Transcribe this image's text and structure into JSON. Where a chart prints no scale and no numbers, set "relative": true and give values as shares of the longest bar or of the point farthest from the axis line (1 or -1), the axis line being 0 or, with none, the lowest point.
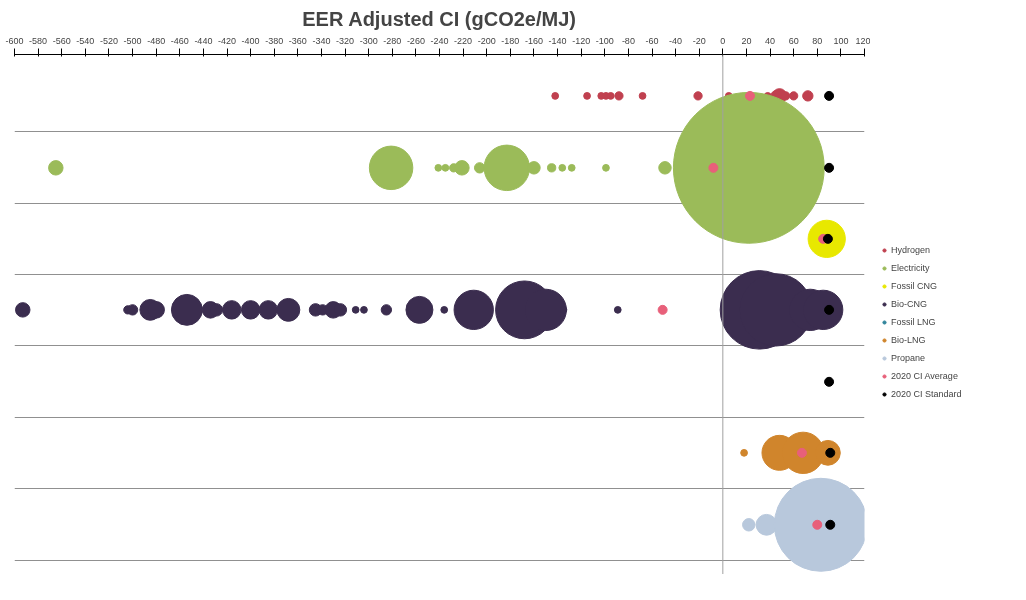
{
  "chart_data": {
    "type": "bubble",
    "title": "EER Adjusted CI (gCO2e/MJ)",
    "relative": true,
    "xlim": [
      -600,
      120
    ],
    "xticks": [
      -600,
      -580,
      -560,
      -540,
      -520,
      -500,
      -480,
      -460,
      -440,
      -420,
      -400,
      -380,
      -360,
      -340,
      -320,
      -300,
      -280,
      -260,
      -240,
      -220,
      -200,
      -180,
      -160,
      -140,
      -120,
      -100,
      -80,
      -60,
      -40,
      -20,
      0,
      20,
      40,
      60,
      80,
      100,
      120
    ],
    "tick_labels": "x",
    "grid": "y",
    "legend": "right",
    "ref_lines": [
      {
        "axis": "x",
        "value": 0,
        "color": "#a0a0a0"
      }
    ],
    "series": [
      {
        "name": "Hydrogen",
        "color": "#c0404f",
        "x": [
          -142,
          -115,
          -103,
          -99,
          -95,
          -88,
          -68,
          -21,
          5,
          38,
          45,
          48,
          53,
          60,
          72
        ],
        "values": [
          -0.088,
          -0.088,
          -0.088,
          -0.088,
          -0.088,
          -0.088,
          -0.088,
          -0.088,
          -0.088,
          -0.088,
          -0.088,
          -0.088,
          -0.088,
          -0.088,
          -0.088
        ],
        "sizes": [
          0.002,
          0.002,
          0.002,
          0.002,
          0.002,
          0.003,
          0.002,
          0.003,
          0.002,
          0.002,
          0.0047,
          0.0092,
          0.003,
          0.003,
          0.0047
        ]
      },
      {
        "name": "Electricity",
        "color": "#9bbb59",
        "x": [
          -565,
          -281,
          -241,
          -235,
          -228,
          -221,
          -206,
          -183,
          -160,
          -145,
          -136,
          -128,
          -99,
          -49,
          22
        ],
        "values": [
          -0.241,
          -0.241,
          -0.241,
          -0.241,
          -0.241,
          -0.241,
          -0.241,
          -0.241,
          -0.241,
          -0.241,
          -0.241,
          -0.241,
          -0.241,
          -0.241,
          -0.241
        ],
        "sizes": [
          0.0092,
          0.083,
          0.002,
          0.002,
          0.003,
          0.0092,
          0.0047,
          0.091,
          0.0068,
          0.003,
          0.002,
          0.002,
          0.002,
          0.0068,
          1
        ]
      },
      {
        "name": "Fossil CNG",
        "color": "#e8e800",
        "x": [
          88
        ],
        "values": [
          -0.392
        ],
        "sizes": [
          0.061
        ]
      },
      {
        "name": "Bio-CNG",
        "color": "#3b2d4f",
        "x": [
          -593,
          -504,
          -500,
          -485,
          -480,
          -454,
          -434,
          -429,
          -416,
          -400,
          -385,
          -368,
          -345,
          -339,
          -330,
          -324,
          -311,
          -304,
          -285,
          -257,
          -236,
          -211,
          -168,
          -150,
          -135,
          -89,
          31,
          45,
          74,
          85
        ],
        "values": [
          -0.543,
          -0.543,
          -0.543,
          -0.543,
          -0.543,
          -0.543,
          -0.543,
          -0.543,
          -0.543,
          -0.543,
          -0.543,
          -0.543,
          -0.543,
          -0.543,
          -0.543,
          -0.543,
          -0.543,
          -0.543,
          -0.543,
          -0.543,
          -0.543,
          -0.543,
          -0.543,
          -0.543,
          -0.543,
          -0.543,
          -0.543,
          -0.543,
          -0.543,
          -0.543
        ],
        "sizes": [
          0.0092,
          0.003,
          0.0047,
          0.019,
          0.012,
          0.042,
          0.012,
          0.0068,
          0.015,
          0.015,
          0.015,
          0.023,
          0.0068,
          0.0047,
          0.012,
          0.0068,
          0.002,
          0.002,
          0.0047,
          0.032,
          0.002,
          0.068,
          0.147,
          0.075,
          0.002,
          0.002,
          0.271,
          0.23,
          0.075,
          0.068
        ]
      },
      {
        "name": "Fossil LNG",
        "color": "#31859c"
      },
      {
        "name": "Bio-LNG",
        "color": "#d0852c",
        "x": [
          18,
          48,
          68,
          89
        ],
        "values": [
          -0.847,
          -0.847,
          -0.847,
          -0.847
        ],
        "sizes": [
          0.002,
          0.054,
          0.075,
          0.027
        ]
      },
      {
        "name": "Propane",
        "color": "#b8c8dc",
        "x": [
          22,
          37,
          83
        ],
        "values": [
          -1,
          -1,
          -1
        ],
        "sizes": [
          0.0068,
          0.019,
          0.38
        ]
      },
      {
        "name": "2020 CI Average",
        "color": "#e8607a",
        "type": "scatter",
        "marker": "circle",
        "x": [
          23,
          -8,
          85,
          -51,
          67,
          80
        ],
        "values": [
          -0.088,
          -0.241,
          -0.392,
          -0.543,
          -0.847,
          -1
        ]
      },
      {
        "name": "2020 CI Standard",
        "color": "#000000",
        "type": "scatter",
        "marker": "circle",
        "x": [
          90,
          90,
          89,
          90,
          90,
          91,
          91
        ],
        "values": [
          -0.088,
          -0.241,
          -0.392,
          -0.543,
          -0.696,
          -0.847,
          -1
        ]
      }
    ]
  }
}
